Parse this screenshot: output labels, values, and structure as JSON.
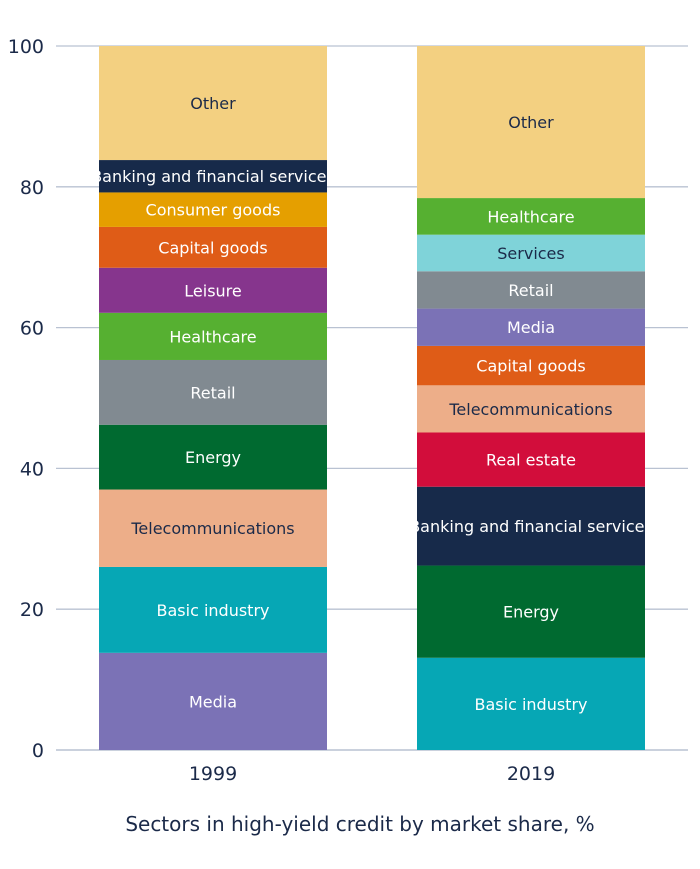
{
  "chart_data": {
    "type": "bar",
    "stacked": true,
    "title": "",
    "xlabel": "Sectors in high-yield credit by market share, %",
    "ylabel": "",
    "ylim": [
      0,
      100
    ],
    "yticks": [
      "0",
      "20",
      "40",
      "60",
      "80",
      "100"
    ],
    "grid": true,
    "legend": "none",
    "categories": [
      "1999",
      "2019"
    ],
    "stacks": [
      {
        "category": "1999",
        "segments": [
          {
            "name": "Media",
            "value": 13.8,
            "color": "#7b72b6",
            "text_color": "#ffffff"
          },
          {
            "name": "Basic industry",
            "value": 12.2,
            "color": "#06a7b5",
            "text_color": "#ffffff"
          },
          {
            "name": "Telecommunications",
            "value": 11.0,
            "color": "#edae89",
            "text_color": "#1b2a49"
          },
          {
            "name": "Energy",
            "value": 9.2,
            "color": "#006a30",
            "text_color": "#ffffff"
          },
          {
            "name": "Retail",
            "value": 9.2,
            "color": "#818a91",
            "text_color": "#ffffff"
          },
          {
            "name": "Healthcare",
            "value": 6.7,
            "color": "#56b031",
            "text_color": "#ffffff"
          },
          {
            "name": "Leisure",
            "value": 6.4,
            "color": "#86358d",
            "text_color": "#ffffff"
          },
          {
            "name": "Capital goods",
            "value": 5.8,
            "color": "#df5c17",
            "text_color": "#ffffff"
          },
          {
            "name": "Consumer goods",
            "value": 4.9,
            "color": "#e59f00",
            "text_color": "#ffffff"
          },
          {
            "name": "Banking and financial services",
            "value": 4.6,
            "color": "#172a4a",
            "text_color": "#ffffff"
          },
          {
            "name": "Other",
            "value": 16.2,
            "color": "#f3d081",
            "text_color": "#1b2a49"
          }
        ]
      },
      {
        "category": "2019",
        "segments": [
          {
            "name": "Basic industry",
            "value": 13.1,
            "color": "#06a7b5",
            "text_color": "#ffffff"
          },
          {
            "name": "Energy",
            "value": 13.1,
            "color": "#006a30",
            "text_color": "#ffffff"
          },
          {
            "name": "Banking and financial services",
            "value": 11.2,
            "color": "#172a4a",
            "text_color": "#ffffff"
          },
          {
            "name": "Real estate",
            "value": 7.7,
            "color": "#d20d3b",
            "text_color": "#ffffff"
          },
          {
            "name": "Telecommunications",
            "value": 6.7,
            "color": "#edae89",
            "text_color": "#1b2a49"
          },
          {
            "name": "Capital goods",
            "value": 5.6,
            "color": "#df5c17",
            "text_color": "#ffffff"
          },
          {
            "name": "Media",
            "value": 5.3,
            "color": "#7b72b6",
            "text_color": "#ffffff"
          },
          {
            "name": "Retail",
            "value": 5.3,
            "color": "#818a91",
            "text_color": "#ffffff"
          },
          {
            "name": "Services",
            "value": 5.2,
            "color": "#7fd3d9",
            "text_color": "#1b2a49"
          },
          {
            "name": "Healthcare",
            "value": 5.2,
            "color": "#56b031",
            "text_color": "#ffffff"
          },
          {
            "name": "Other",
            "value": 21.6,
            "color": "#f3d081",
            "text_color": "#1b2a49"
          }
        ]
      }
    ]
  },
  "colors": {
    "axis_text": "#1b2a49",
    "grid": "#b9c2d2",
    "background": "#ffffff"
  }
}
